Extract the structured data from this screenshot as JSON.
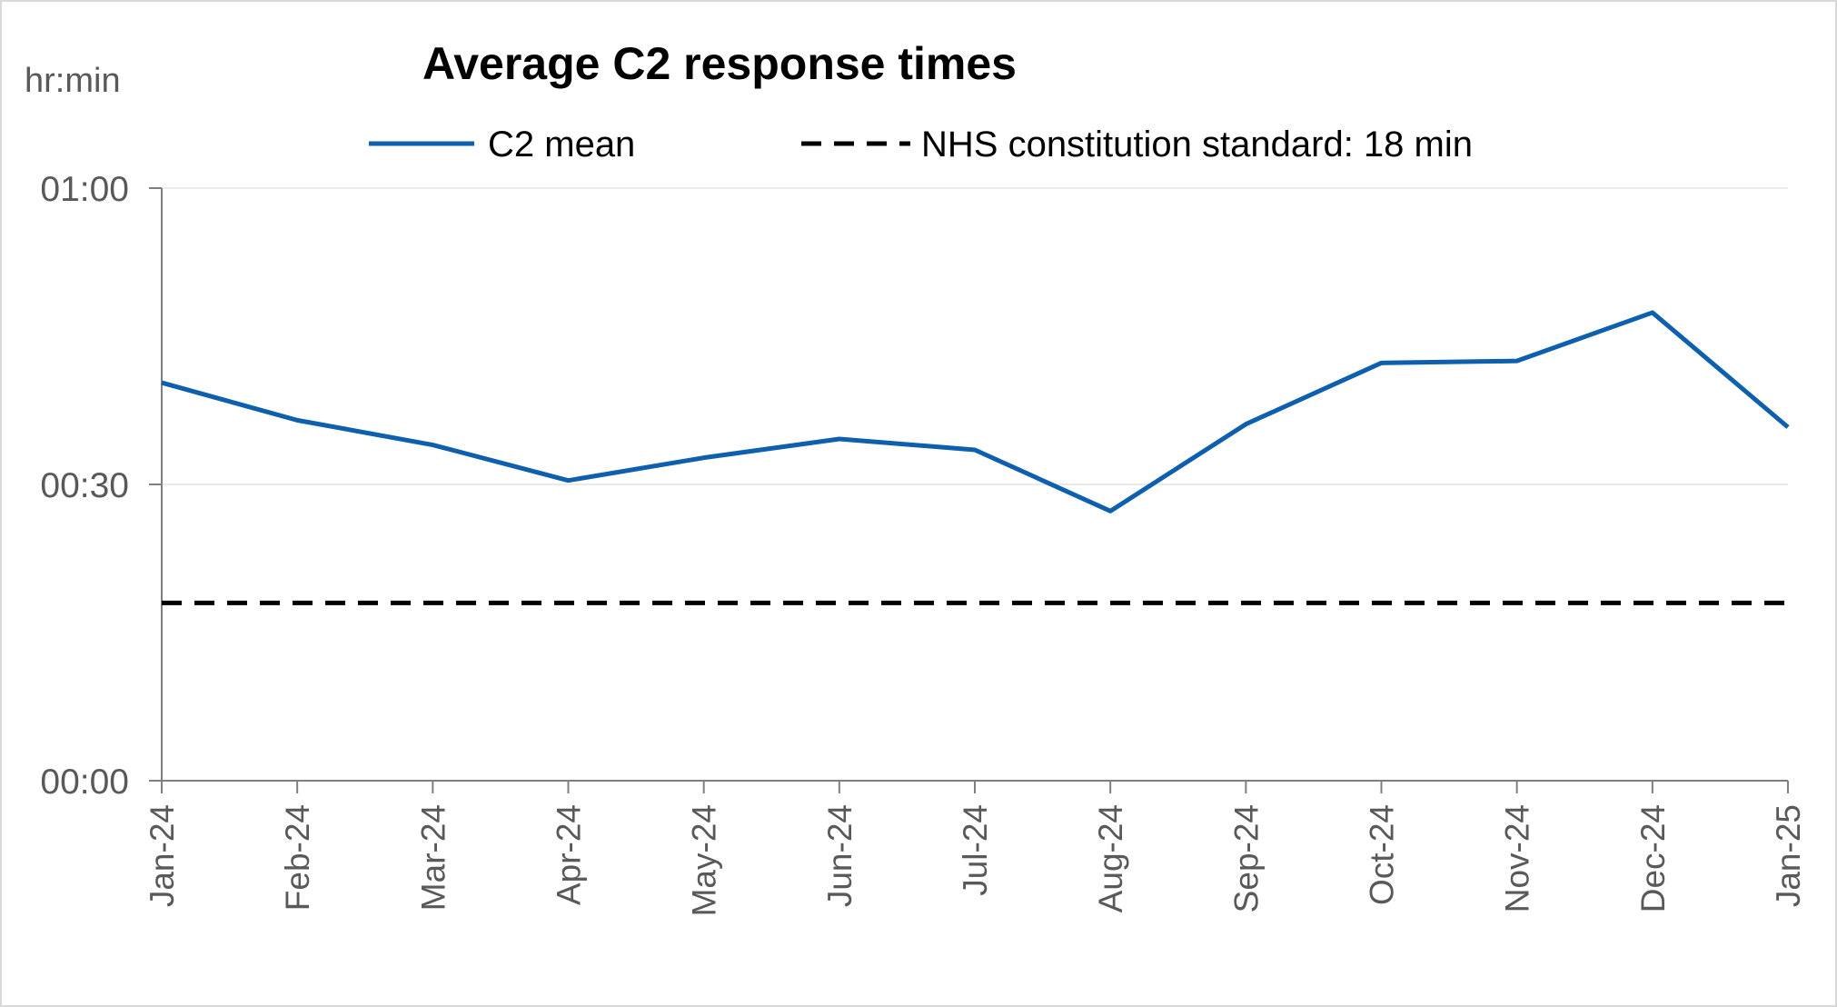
{
  "chart_data": {
    "type": "line",
    "title": "Average C2 response times",
    "y_unit_label": "hr:min",
    "categories": [
      "Jan-24",
      "Feb-24",
      "Mar-24",
      "Apr-24",
      "May-24",
      "Jun-24",
      "Jul-24",
      "Aug-24",
      "Sep-24",
      "Oct-24",
      "Nov-24",
      "Dec-24",
      "Jan-25"
    ],
    "series": [
      {
        "name": "C2 mean",
        "color": "#0e5fae",
        "style": "solid",
        "values_minutes": [
          40.3,
          36.5,
          34.0,
          30.4,
          32.7,
          34.6,
          33.5,
          27.3,
          36.1,
          42.3,
          42.5,
          47.4,
          35.8
        ]
      },
      {
        "name": "NHS constitution standard: 18 min",
        "color": "#000000",
        "style": "dashed",
        "values_minutes": [
          18,
          18,
          18,
          18,
          18,
          18,
          18,
          18,
          18,
          18,
          18,
          18,
          18
        ]
      }
    ],
    "y_ticks": [
      "00:00",
      "00:30",
      "01:00"
    ],
    "ylim_minutes": [
      0,
      60
    ],
    "grid": "horizontal",
    "legend_position": "top"
  }
}
